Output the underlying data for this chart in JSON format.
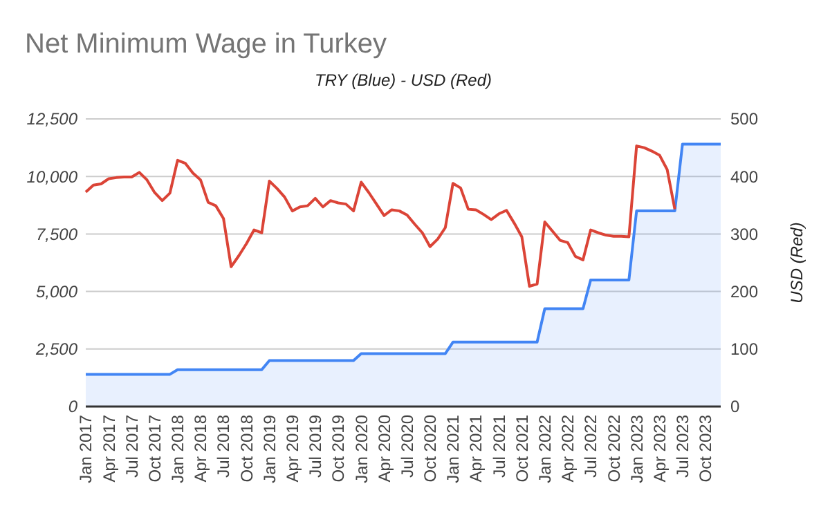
{
  "chart_data": {
    "type": "line",
    "title": "Net Minimum Wage in Turkey",
    "subtitle": "TRY (Blue) - USD (Red)",
    "y2label": "USD (Red)",
    "categories": [
      "Jan 2017",
      null,
      null,
      "Apr 2017",
      null,
      null,
      "Jul 2017",
      null,
      null,
      "Oct 2017",
      null,
      null,
      "Jan 2018",
      null,
      null,
      "Apr 2018",
      null,
      null,
      "Jul 2018",
      null,
      null,
      "Oct 2018",
      null,
      null,
      "Jan 2019",
      null,
      null,
      "Apr 2019",
      null,
      null,
      "Jul 2019",
      null,
      null,
      "Oct 2019",
      null,
      null,
      "Jan 2020",
      null,
      null,
      "Apr 2020",
      null,
      null,
      "Jul 2020",
      null,
      null,
      "Oct 2020",
      null,
      null,
      "Jan 2021",
      null,
      null,
      "Apr 2021",
      null,
      null,
      "Jul 2021",
      null,
      null,
      "Oct 2021",
      null,
      null,
      "Jan 2022",
      null,
      null,
      "Apr 2022",
      null,
      null,
      "Jul 2022",
      null,
      null,
      "Oct 2022",
      null,
      null,
      "Jan 2023",
      null,
      null,
      "Apr 2023",
      null,
      null,
      "Jul 2023",
      null,
      null,
      "Oct 2023",
      null,
      null
    ],
    "series": [
      {
        "type": "area",
        "color": "#4285f4",
        "values": [
          1400,
          1400,
          1400,
          1400,
          1400,
          1400,
          1400,
          1400,
          1400,
          1400,
          1400,
          1400,
          1600,
          1600,
          1600,
          1600,
          1600,
          1600,
          1600,
          1600,
          1600,
          1600,
          1600,
          1600,
          2000,
          2000,
          2000,
          2000,
          2000,
          2000,
          2000,
          2000,
          2000,
          2000,
          2000,
          2000,
          2300,
          2300,
          2300,
          2300,
          2300,
          2300,
          2300,
          2300,
          2300,
          2300,
          2300,
          2300,
          2800,
          2800,
          2800,
          2800,
          2800,
          2800,
          2800,
          2800,
          2800,
          2800,
          2800,
          2800,
          4250,
          4250,
          4250,
          4250,
          4250,
          4250,
          5500,
          5500,
          5500,
          5500,
          5500,
          5500,
          8500,
          8500,
          8500,
          8500,
          8500,
          8500,
          11400,
          11400,
          11400,
          11400,
          11400,
          11400
        ]
      },
      {
        "axis": "y2",
        "color": "#db4437",
        "values": [
          373,
          385,
          387,
          396,
          398,
          399,
          399,
          407,
          394,
          372,
          358,
          371,
          428,
          423,
          406,
          394,
          355,
          349,
          327,
          243,
          262,
          283,
          307,
          302,
          392,
          379,
          364,
          340,
          347,
          349,
          362,
          347,
          358,
          354,
          352,
          340,
          390,
          372,
          352,
          332,
          342,
          340,
          333,
          317,
          302,
          278,
          291,
          311,
          388,
          380,
          343,
          342,
          334,
          325,
          335,
          341,
          319,
          295,
          209,
          213,
          321,
          305,
          289,
          285,
          261,
          255,
          307,
          302,
          298,
          296,
          296,
          295,
          453,
          450,
          444,
          437,
          412,
          343,
          null,
          null,
          null,
          null,
          null,
          null
        ]
      }
    ],
    "ylim": [
      0,
      12500
    ],
    "yticks": [
      0,
      {
        "value": 2500,
        "label": "2,500"
      },
      {
        "value": 5000,
        "label": "5,000"
      },
      {
        "value": 7500,
        "label": "7,500"
      },
      {
        "value": 10000,
        "label": "10,000"
      },
      {
        "value": 12500,
        "label": "12,500"
      }
    ],
    "y2lim": [
      0,
      500
    ],
    "y2ticks": [
      0,
      100,
      200,
      300,
      400,
      500
    ],
    "grid": "y"
  }
}
